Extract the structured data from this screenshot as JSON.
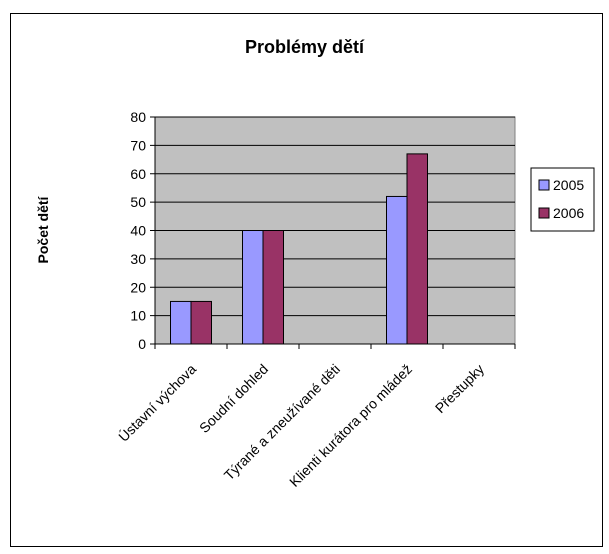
{
  "chart_data": {
    "type": "bar",
    "title": "Problémy dětí",
    "xlabel": "",
    "ylabel": "Počet dětí",
    "categories": [
      "Ústavní výchova",
      "Soudní dohled",
      "Týrané a zneužívané děti",
      "Klienti kurátora pro mládež",
      "Přestupky"
    ],
    "series": [
      {
        "name": "2005",
        "values": [
          15,
          40,
          0,
          52,
          0
        ],
        "color": "#9999ff"
      },
      {
        "name": "2006",
        "values": [
          15,
          40,
          0,
          67,
          0
        ],
        "color": "#993366"
      }
    ],
    "ylim": [
      0,
      80
    ],
    "yticks": [
      0,
      10,
      20,
      30,
      40,
      50,
      60,
      70,
      80
    ],
    "grid": true,
    "plot_background": "#c0c0c0",
    "legend_position": "right"
  }
}
